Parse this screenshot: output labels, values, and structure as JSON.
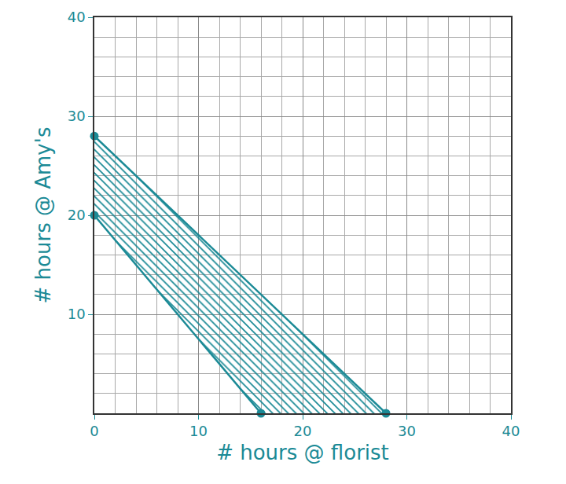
{
  "chart_data": {
    "type": "line",
    "x_label": "# hours @ florist",
    "y_label": "# hours @ Amy's",
    "xlim": [
      0,
      40
    ],
    "ylim": [
      0,
      40
    ],
    "xticks": [
      0,
      10,
      20,
      30,
      40
    ],
    "yticks": [
      10,
      20,
      30,
      40
    ],
    "grid": true,
    "color": "#1b8a96",
    "marker": "circle",
    "series": [
      {
        "x": [
          0,
          28
        ],
        "values": [
          28,
          0
        ]
      },
      {
        "x": [
          0,
          16
        ],
        "values": [
          20,
          0
        ]
      }
    ]
  }
}
